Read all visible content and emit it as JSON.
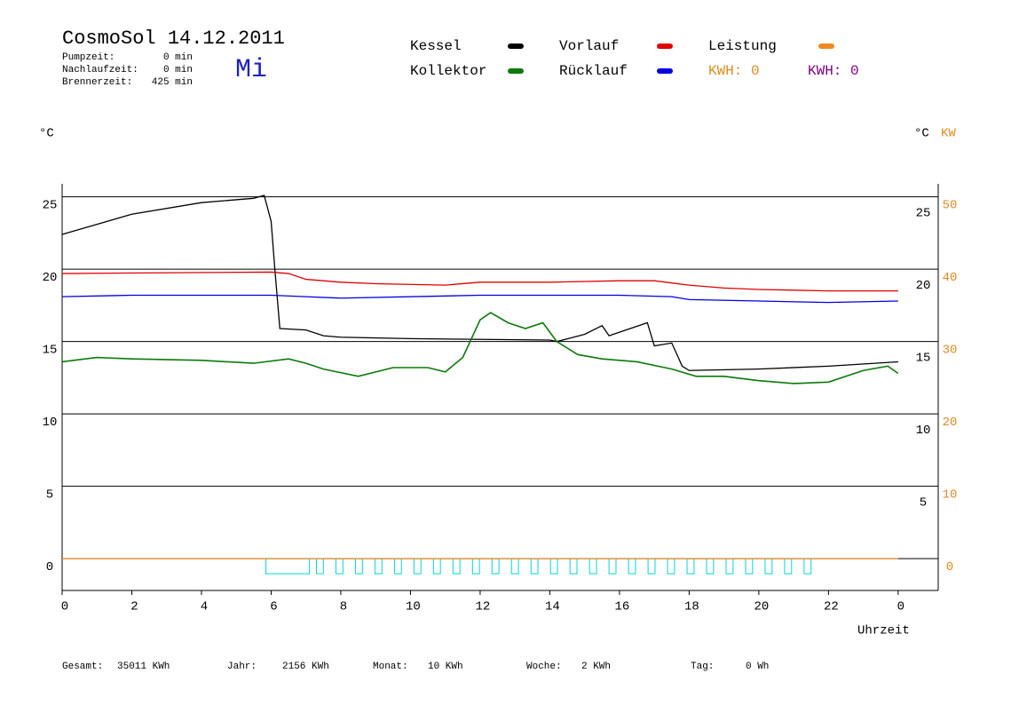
{
  "header": {
    "title": "CosmoSol 14.12.2011",
    "weekday": "Mi",
    "stats": [
      {
        "label": "Pumpzeit:",
        "value": "0 min"
      },
      {
        "label": "Nachlaufzeit:",
        "value": "0 min"
      },
      {
        "label": "Brennerzeit:",
        "value": "425 min"
      }
    ]
  },
  "chart_data": {
    "type": "line",
    "y_unit": "°C",
    "y2_unit_left": "°C",
    "y2_unit": "KW",
    "xlabel": "Uhrzeit",
    "xlim": [
      0,
      25.15
    ],
    "xticks": [
      0,
      2,
      4,
      6,
      8,
      10,
      12,
      14,
      16,
      18,
      20,
      22,
      {
        "value": 24,
        "label": "0"
      }
    ],
    "ylim": [
      -2.2,
      25.9
    ],
    "yticks": [
      0,
      5,
      10,
      15,
      20,
      25
    ],
    "yticks_right": [
      5,
      10,
      15,
      20,
      25
    ],
    "y2lim": [
      -4.4,
      51.8
    ],
    "y2ticks": [
      0,
      10,
      20,
      30,
      40,
      50
    ],
    "y2color": "#e08a20",
    "grid": true,
    "series": [
      {
        "name": "Kessel",
        "color": "#000000",
        "x": [
          0,
          2,
          4,
          5.5,
          5.8,
          6.0,
          6.1,
          6.25,
          7,
          7.5,
          8,
          10,
          14,
          14.2,
          15,
          15.5,
          15.7,
          16.8,
          17.0,
          17.5,
          17.8,
          18,
          20,
          22,
          24
        ],
        "values": [
          22.4,
          23.8,
          24.6,
          24.9,
          25.1,
          23.3,
          20.2,
          15.9,
          15.8,
          15.4,
          15.3,
          15.2,
          15.1,
          15.0,
          15.5,
          16.1,
          15.4,
          16.3,
          14.7,
          14.9,
          13.3,
          13.0,
          13.1,
          13.3,
          13.6
        ]
      },
      {
        "name": "Vorlauf",
        "color": "#e00000",
        "x": [
          0,
          6,
          6.5,
          7,
          8,
          9,
          11,
          12,
          14,
          16,
          17,
          18,
          19,
          20,
          22,
          24
        ],
        "values": [
          19.7,
          19.8,
          19.7,
          19.3,
          19.1,
          19.0,
          18.9,
          19.1,
          19.1,
          19.2,
          19.2,
          18.9,
          18.7,
          18.6,
          18.5,
          18.5
        ]
      },
      {
        "name": "Leistung",
        "color": "#f08a20",
        "axis": "y2",
        "x": [
          0,
          24
        ],
        "values": [
          0,
          0
        ]
      },
      {
        "name": "Kollektor",
        "color": "#0a7a0a",
        "x": [
          0,
          1,
          2,
          4,
          5.5,
          6.5,
          7,
          7.5,
          8.5,
          9.5,
          10.5,
          11,
          11.5,
          12,
          12.3,
          12.8,
          13.3,
          13.8,
          14.2,
          14.8,
          15.5,
          16.5,
          17.5,
          18.2,
          19,
          20,
          21,
          22,
          23,
          23.7,
          24
        ],
        "values": [
          13.6,
          13.9,
          13.8,
          13.7,
          13.5,
          13.8,
          13.5,
          13.1,
          12.6,
          13.2,
          13.2,
          12.9,
          13.9,
          16.5,
          17.0,
          16.3,
          15.9,
          16.3,
          15.0,
          14.1,
          13.8,
          13.6,
          13.1,
          12.6,
          12.6,
          12.3,
          12.1,
          12.2,
          13.0,
          13.3,
          12.8
        ]
      },
      {
        "name": "Rücklauf",
        "color": "#0000e0",
        "x": [
          0,
          2,
          6,
          7,
          8,
          12,
          16,
          17.5,
          18,
          20,
          22,
          24
        ],
        "values": [
          18.1,
          18.2,
          18.2,
          18.1,
          18.0,
          18.2,
          18.2,
          18.1,
          17.9,
          17.8,
          17.7,
          17.8
        ]
      }
    ],
    "kwh": [
      {
        "label": "KWH: 0",
        "color": "#e08a20"
      },
      {
        "label": "KWH: 0",
        "color": "#800080"
      }
    ],
    "pump_color": "#00d8d8",
    "pump_intervals": [
      [
        5.85,
        7.1
      ],
      [
        7.3,
        7.5
      ],
      [
        7.86,
        8.06
      ],
      [
        8.42,
        8.62
      ],
      [
        8.98,
        9.18
      ],
      [
        9.54,
        9.74
      ],
      [
        10.1,
        10.3
      ],
      [
        10.66,
        10.86
      ],
      [
        11.22,
        11.42
      ],
      [
        11.78,
        11.98
      ],
      [
        12.34,
        12.54
      ],
      [
        12.9,
        13.1
      ],
      [
        13.46,
        13.66
      ],
      [
        14.02,
        14.22
      ],
      [
        14.58,
        14.78
      ],
      [
        15.14,
        15.34
      ],
      [
        15.7,
        15.9
      ],
      [
        16.26,
        16.46
      ],
      [
        16.82,
        17.02
      ],
      [
        17.38,
        17.58
      ],
      [
        17.94,
        18.14
      ],
      [
        18.5,
        18.7
      ],
      [
        19.06,
        19.26
      ],
      [
        19.62,
        19.82
      ],
      [
        20.18,
        20.38
      ],
      [
        20.74,
        20.94
      ],
      [
        21.3,
        21.5
      ]
    ]
  },
  "footer": [
    {
      "label": "Gesamt:",
      "value": "35011 KWh"
    },
    {
      "label": "Jahr:",
      "value": "2156 KWh"
    },
    {
      "label": "Monat:",
      "value": "10 KWh"
    },
    {
      "label": "Woche:",
      "value": "2 KWh"
    },
    {
      "label": "Tag:",
      "value": "0 Wh"
    }
  ]
}
